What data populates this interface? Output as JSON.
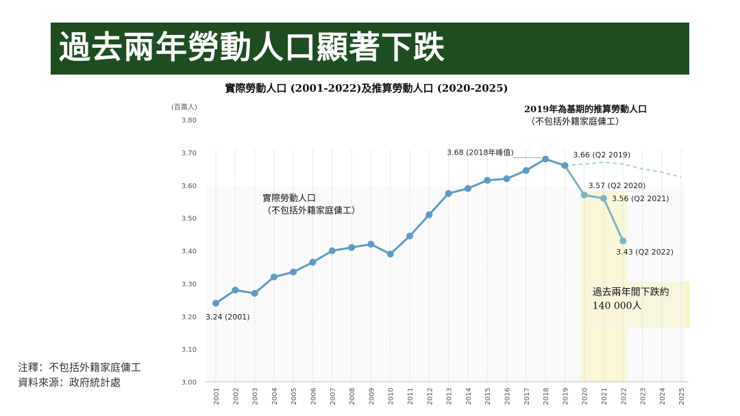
{
  "banner": {
    "title": "過去兩年勞動人口顯著下跌"
  },
  "notes": {
    "note": "注釋：不包括外籍家庭傭工",
    "source": "資料來源：政府統計處"
  },
  "colors": {
    "banner": "#1e4d22",
    "actual_line": "#5b9bc6",
    "projected_line": "#a9cde3",
    "highlight": "#fff59a",
    "highlight_box": "#fbf3b8"
  },
  "chart_data": {
    "type": "line",
    "title": "實際勞動人口 (2001-2022)及推算勞動人口 (2020-2025)",
    "ylabel": "(百萬人)",
    "ylim": [
      3.0,
      3.8
    ],
    "yticks": [
      "3.00",
      "3.10",
      "3.20",
      "3.30",
      "3.40",
      "3.50",
      "3.60",
      "3.70",
      "3.80"
    ],
    "categories": [
      "2001",
      "2002",
      "2003",
      "2004",
      "2005",
      "2006",
      "2007",
      "2008",
      "2009",
      "2010",
      "2011",
      "2012",
      "2013",
      "2014",
      "2015",
      "2016",
      "2017",
      "2018",
      "2019",
      "2020",
      "2021",
      "2022",
      "2023",
      "2024",
      "2025"
    ],
    "grid": "vertical dotted",
    "series": [
      {
        "name": "實際勞動人口",
        "sub_label": "（不包括外籍家庭傭工）",
        "style": "solid with markers",
        "values": [
          3.24,
          3.28,
          3.27,
          3.32,
          3.335,
          3.365,
          3.4,
          3.41,
          3.42,
          3.39,
          3.445,
          3.51,
          3.575,
          3.59,
          3.615,
          3.62,
          3.645,
          3.68,
          3.66,
          3.57,
          3.56,
          3.43,
          null,
          null,
          null
        ]
      },
      {
        "name": "2019年為基期的推算勞動人口",
        "sub_label": "（不包括外籍家庭傭工）",
        "style": "dashed",
        "values": [
          null,
          null,
          null,
          null,
          null,
          null,
          null,
          null,
          null,
          null,
          null,
          null,
          null,
          null,
          null,
          null,
          null,
          null,
          3.66,
          3.665,
          3.67,
          3.665,
          3.65,
          3.64,
          3.625
        ]
      }
    ],
    "annotations": {
      "first": "3.24 (2001)",
      "peak": "3.68 (2018年峰值)",
      "q2_2019": "3.66 (Q2 2019)",
      "q2_2020": "3.57 (Q2 2020)",
      "q2_2021": "3.56 (Q2 2021)",
      "q2_2022": "3.43 (Q2 2022)",
      "decline_line1": "過去兩年間下跌約",
      "decline_line2": "140 000人"
    },
    "highlight_period": [
      "2020",
      "2022"
    ]
  }
}
